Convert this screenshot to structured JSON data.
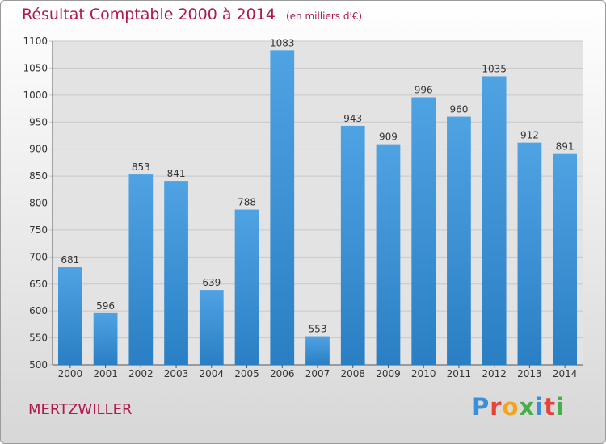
{
  "header": {
    "title": "Résultat Comptable 2000 à 2014",
    "subtitle": "(en milliers d'€)"
  },
  "footer": {
    "commune": "MERTZWILLER",
    "logo_letters": [
      {
        "char": "P",
        "color": "#3a8fd6"
      },
      {
        "char": "r",
        "color": "#e5423a"
      },
      {
        "char": "o",
        "color": "#f2a516"
      },
      {
        "char": "x",
        "color": "#43b04a"
      },
      {
        "char": "i",
        "color": "#3a8fd6"
      },
      {
        "char": "t",
        "color": "#e5423a"
      },
      {
        "char": "i",
        "color": "#43b04a"
      }
    ]
  },
  "chart_data": {
    "type": "bar",
    "title": "Résultat Comptable 2000 à 2014",
    "subtitle": "(en milliers d'€)",
    "categories": [
      "2000",
      "2001",
      "2002",
      "2003",
      "2004",
      "2005",
      "2006",
      "2007",
      "2008",
      "2009",
      "2010",
      "2011",
      "2012",
      "2013",
      "2014"
    ],
    "values": [
      681,
      596,
      853,
      841,
      639,
      788,
      1083,
      553,
      943,
      909,
      996,
      960,
      1035,
      912,
      891
    ],
    "ylim": [
      500,
      1100
    ],
    "yticks": [
      500,
      550,
      600,
      650,
      700,
      750,
      800,
      850,
      900,
      950,
      1000,
      1050,
      1100
    ],
    "grid": true,
    "bar_color": "#4fa3e3",
    "bar_color_dark": "#2a7fc4",
    "grid_color": "#c8c8c8"
  }
}
